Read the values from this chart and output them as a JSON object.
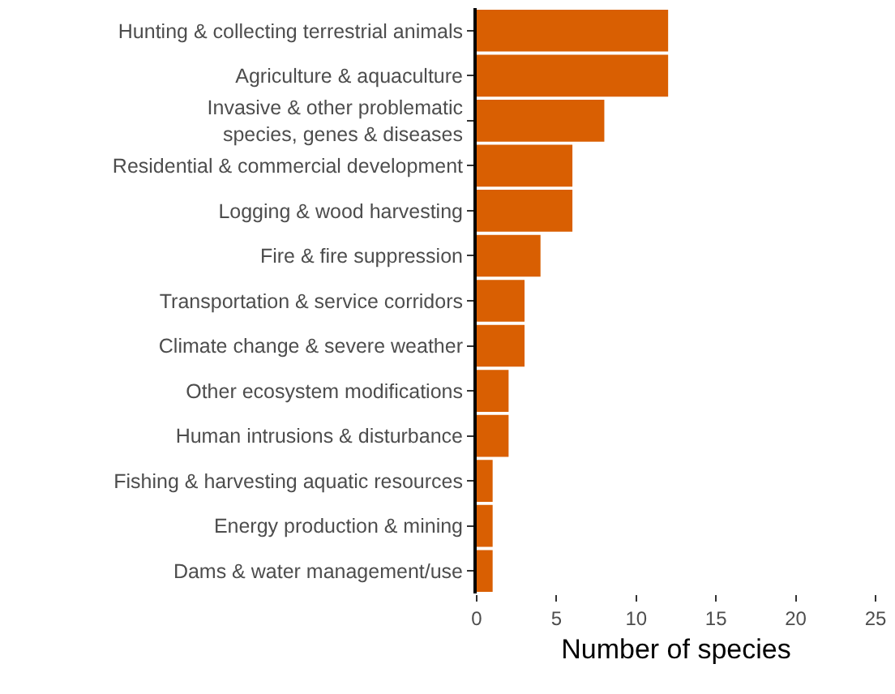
{
  "chart_data": {
    "type": "bar",
    "orientation": "horizontal",
    "xlabel": "Number of species",
    "categories": [
      "Hunting & collecting terrestrial animals",
      "Agriculture & aquaculture",
      "Invasive & other problematic\nspecies, genes & diseases",
      "Residential & commercial development",
      "Logging & wood harvesting",
      "Fire & fire suppression",
      "Transportation & service corridors",
      "Climate change & severe weather",
      "Other ecosystem modifications",
      "Human intrusions & disturbance",
      "Fishing & harvesting aquatic resources",
      "Energy production & mining",
      "Dams & water management/use"
    ],
    "values": [
      12,
      12,
      8,
      6,
      6,
      4,
      3,
      3,
      2,
      2,
      1,
      1,
      1
    ],
    "color": "#d95f02",
    "xlim": [
      0,
      25
    ],
    "xticks": [
      0,
      5,
      10,
      15,
      20,
      25
    ],
    "grid": false
  }
}
